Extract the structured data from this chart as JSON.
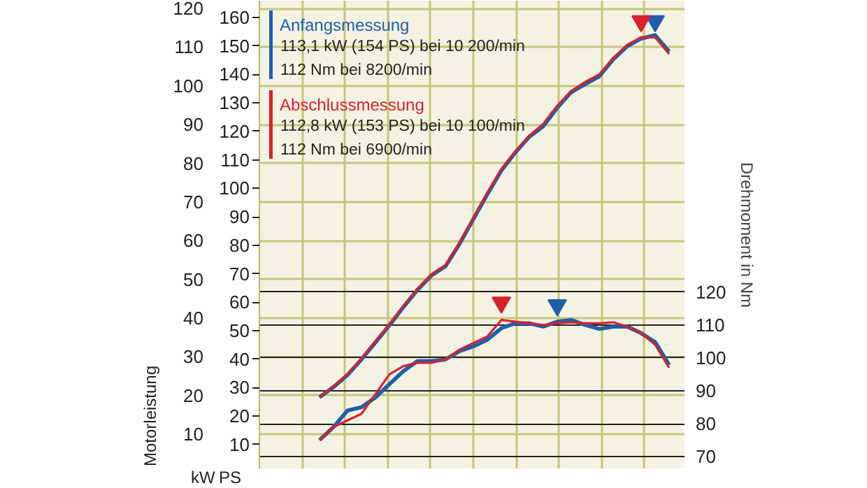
{
  "chart_data": {
    "type": "line",
    "ylabel": "Motorleistung",
    "y3label": "Drehmoment in Nm",
    "annotations": [
      "113,1 kW (154 PS) bei 10 200/min",
      "112 Nm bei 8200/min",
      "112,8 kW (153 PS) bei 10 100/min",
      "112 Nm bei 6900/min",
      "kW",
      "PS"
    ],
    "categories": [
      null,
      null,
      null,
      null,
      null,
      null,
      null,
      null,
      null,
      null,
      null,
      null,
      null,
      null,
      null,
      null,
      null,
      null,
      null,
      null,
      null,
      null,
      null,
      null,
      null,
      null
    ],
    "ylim": [
      1,
      122
    ],
    "yticks": [
      10,
      20,
      30,
      40,
      50,
      60,
      70,
      80,
      90,
      100,
      110,
      120
    ],
    "y2lim": [
      1.36,
      165.9
    ],
    "y2ticks": [
      10,
      20,
      30,
      40,
      50,
      60,
      70,
      80,
      90,
      100,
      110,
      120,
      130,
      140,
      150,
      160
    ],
    "y3lim": [
      66.2,
      208.5
    ],
    "y3ticks": [
      70,
      80,
      90,
      100,
      110,
      120
    ],
    "grid": true,
    "legend": "top left",
    "line_style": "solid",
    "series": [
      {
        "name": "Anfangsmessung",
        "color": "#1f5fa8",
        "axis": "y2",
        "values": [
          26.6,
          30.2,
          34.4,
          39.9,
          45.9,
          51.9,
          58.3,
          64.3,
          69.4,
          72.6,
          80.4,
          89.2,
          97.9,
          106.2,
          112.6,
          118.1,
          121.8,
          128.3,
          133.8,
          136.6,
          139.3,
          145.3,
          149.9,
          152.6,
          153.8,
          148.0
        ]
      },
      {
        "name": "Abschlussmessung",
        "color": "#d9212f",
        "axis": "y2",
        "values": [
          26.6,
          30.4,
          34.8,
          40.3,
          46.3,
          52.3,
          58.7,
          64.7,
          69.8,
          73.0,
          80.8,
          89.6,
          98.5,
          106.8,
          113.0,
          118.5,
          122.6,
          129.0,
          134.2,
          137.4,
          140.0,
          145.8,
          150.4,
          153.1,
          153.0,
          147.2
        ]
      },
      {
        "color": "#1f5fa8",
        "axis": "y3",
        "values": [
          75,
          79,
          84,
          85,
          88,
          92,
          96,
          99,
          99,
          99.5,
          102,
          103.5,
          105.5,
          109,
          110.5,
          110.5,
          109.5,
          111,
          111.5,
          110,
          108.8,
          109.5,
          109.5,
          107.5,
          104.8,
          97.8
        ]
      },
      {
        "color": "#d9212f",
        "axis": "y3",
        "values": [
          75,
          79,
          81,
          83,
          89,
          95,
          97.5,
          98.5,
          98.5,
          99.5,
          102.5,
          104.5,
          106.5,
          111.5,
          111,
          110.5,
          110,
          110.5,
          110.8,
          110.5,
          110.5,
          110.8,
          109.5,
          107.5,
          104,
          97
        ]
      },
      {
        "type": "scatter",
        "marker": "triangle",
        "color": "#1f5fa8",
        "axis": "y2",
        "values": [
          null,
          null,
          null,
          null,
          null,
          null,
          null,
          null,
          null,
          null,
          null,
          null,
          null,
          null,
          null,
          null,
          null,
          null,
          null,
          null,
          null,
          null,
          null,
          null,
          158.7,
          null
        ]
      },
      {
        "type": "scatter",
        "marker": "triangle",
        "color": "#d9212f",
        "axis": "y2",
        "values": [
          null,
          null,
          null,
          null,
          null,
          null,
          null,
          null,
          null,
          null,
          null,
          null,
          null,
          null,
          null,
          null,
          null,
          null,
          null,
          null,
          null,
          null,
          null,
          158.7,
          null,
          null
        ]
      },
      {
        "type": "scatter",
        "marker": "triangle",
        "color": "#1f5fa8",
        "axis": "y3",
        "values": [
          null,
          null,
          null,
          null,
          null,
          null,
          null,
          null,
          null,
          null,
          null,
          null,
          null,
          null,
          null,
          null,
          null,
          116,
          null,
          null,
          null,
          null,
          null,
          null,
          null,
          null
        ]
      },
      {
        "type": "scatter",
        "marker": "triangle",
        "color": "#d9212f",
        "axis": "y3",
        "values": [
          null,
          null,
          null,
          null,
          null,
          null,
          null,
          null,
          null,
          null,
          null,
          null,
          null,
          116.8,
          null,
          null,
          null,
          null,
          null,
          null,
          null,
          null,
          null,
          null,
          null,
          null
        ]
      }
    ]
  }
}
